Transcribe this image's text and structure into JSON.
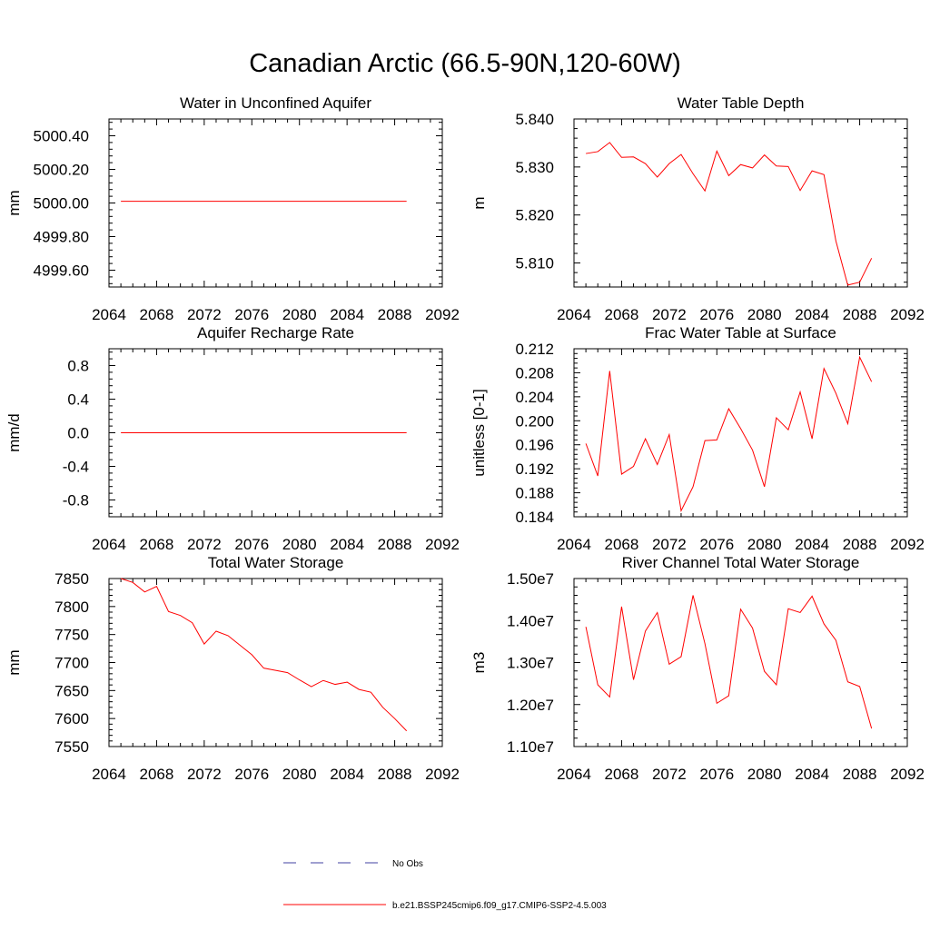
{
  "page_title": "Canadian Arctic (66.5-90N,120-60W)",
  "legend": [
    {
      "label": "No Obs",
      "color": "#4040a0",
      "dash": true
    },
    {
      "label": "b.e21.BSSP245cmip6.f09_g17.CMIP6-SSP2-4.5.003",
      "color": "#ff0000",
      "dash": false
    }
  ],
  "chart_data": [
    {
      "type": "line",
      "title": "Water in Unconfined Aquifer",
      "ylabel": "mm",
      "xlim": [
        2064,
        2092
      ],
      "ylim": [
        4999.5,
        5000.5
      ],
      "xticks": [
        2064,
        2068,
        2072,
        2076,
        2080,
        2084,
        2088,
        2092
      ],
      "xticklabels": [
        "2064",
        "2068",
        "2072",
        "2076",
        "2080",
        "2084",
        "2088",
        "2092"
      ],
      "yticks": [
        4999.6,
        4999.8,
        5000.0,
        5000.2,
        5000.4
      ],
      "yticklabels": [
        "4999.60",
        "4999.80",
        "5000.00",
        "5000.20",
        "5000.40"
      ],
      "x": [
        2065,
        2066,
        2067,
        2068,
        2069,
        2070,
        2071,
        2072,
        2073,
        2074,
        2075,
        2076,
        2077,
        2078,
        2079,
        2080,
        2081,
        2082,
        2083,
        2084,
        2085,
        2086,
        2087,
        2088,
        2089
      ],
      "series": [
        {
          "color": "#ff0000",
          "values": [
            5000.01,
            5000.01,
            5000.01,
            5000.01,
            5000.01,
            5000.01,
            5000.01,
            5000.01,
            5000.01,
            5000.01,
            5000.01,
            5000.01,
            5000.01,
            5000.01,
            5000.01,
            5000.01,
            5000.01,
            5000.01,
            5000.01,
            5000.01,
            5000.01,
            5000.01,
            5000.01,
            5000.01,
            5000.01
          ]
        }
      ]
    },
    {
      "type": "line",
      "title": "Water Table Depth",
      "ylabel": "m",
      "xlim": [
        2064,
        2092
      ],
      "ylim": [
        5.805,
        5.84
      ],
      "xticks": [
        2064,
        2068,
        2072,
        2076,
        2080,
        2084,
        2088,
        2092
      ],
      "xticklabels": [
        "2064",
        "2068",
        "2072",
        "2076",
        "2080",
        "2084",
        "2088",
        "2092"
      ],
      "yticks": [
        5.81,
        5.82,
        5.83,
        5.84
      ],
      "yticklabels": [
        "5.810",
        "5.820",
        "5.830",
        "5.840"
      ],
      "x": [
        2065,
        2066,
        2067,
        2068,
        2069,
        2070,
        2071,
        2072,
        2073,
        2074,
        2075,
        2076,
        2077,
        2078,
        2079,
        2080,
        2081,
        2082,
        2083,
        2084,
        2085,
        2086,
        2087,
        2088,
        2089
      ],
      "series": [
        {
          "color": "#ff0000",
          "values": [
            5.8328,
            5.8332,
            5.8351,
            5.832,
            5.8321,
            5.8307,
            5.8279,
            5.8307,
            5.8326,
            5.8286,
            5.825,
            5.8333,
            5.8282,
            5.8305,
            5.8298,
            5.8325,
            5.8302,
            5.8301,
            5.8251,
            5.8292,
            5.8284,
            5.8146,
            5.8054,
            5.806,
            5.811
          ]
        }
      ]
    },
    {
      "type": "line",
      "title": "Aquifer Recharge Rate",
      "ylabel": "mm/d",
      "xlim": [
        2064,
        2092
      ],
      "ylim": [
        -1.0,
        1.0
      ],
      "xticks": [
        2064,
        2068,
        2072,
        2076,
        2080,
        2084,
        2088,
        2092
      ],
      "xticklabels": [
        "2064",
        "2068",
        "2072",
        "2076",
        "2080",
        "2084",
        "2088",
        "2092"
      ],
      "yticks": [
        -0.8,
        -0.4,
        0.0,
        0.4,
        0.8
      ],
      "yticklabels": [
        "-0.8",
        "-0.4",
        "0.0",
        "0.4",
        "0.8"
      ],
      "x": [
        2065,
        2066,
        2067,
        2068,
        2069,
        2070,
        2071,
        2072,
        2073,
        2074,
        2075,
        2076,
        2077,
        2078,
        2079,
        2080,
        2081,
        2082,
        2083,
        2084,
        2085,
        2086,
        2087,
        2088,
        2089
      ],
      "series": [
        {
          "color": "#ff0000",
          "values": [
            0.0,
            0.0,
            0.0,
            0.0,
            0.0,
            0.0,
            0.0,
            0.0,
            0.0,
            0.0,
            0.0,
            0.0,
            0.0,
            0.0,
            0.0,
            0.0,
            0.0,
            0.0,
            0.0,
            0.0,
            0.0,
            0.0,
            0.0,
            0.0,
            0.0
          ]
        }
      ]
    },
    {
      "type": "line",
      "title": "Frac Water Table at Surface",
      "ylabel": "unitless [0-1]",
      "xlim": [
        2064,
        2092
      ],
      "ylim": [
        0.184,
        0.212
      ],
      "xticks": [
        2064,
        2068,
        2072,
        2076,
        2080,
        2084,
        2088,
        2092
      ],
      "xticklabels": [
        "2064",
        "2068",
        "2072",
        "2076",
        "2080",
        "2084",
        "2088",
        "2092"
      ],
      "yticks": [
        0.184,
        0.188,
        0.192,
        0.196,
        0.2,
        0.204,
        0.208,
        0.212
      ],
      "yticklabels": [
        "0.184",
        "0.188",
        "0.192",
        "0.196",
        "0.200",
        "0.204",
        "0.208",
        "0.212"
      ],
      "x": [
        2065,
        2066,
        2067,
        2068,
        2069,
        2070,
        2071,
        2072,
        2073,
        2074,
        2075,
        2076,
        2077,
        2078,
        2079,
        2080,
        2081,
        2082,
        2083,
        2084,
        2085,
        2086,
        2087,
        2088,
        2089
      ],
      "series": [
        {
          "color": "#ff0000",
          "values": [
            0.1962,
            0.1908,
            0.2083,
            0.1911,
            0.1924,
            0.197,
            0.1927,
            0.1977,
            0.185,
            0.189,
            0.1967,
            0.1968,
            0.202,
            0.1987,
            0.1951,
            0.189,
            0.2005,
            0.1985,
            0.2048,
            0.197,
            0.2087,
            0.2046,
            0.1995,
            0.2106,
            0.2065
          ]
        }
      ]
    },
    {
      "type": "line",
      "title": "Total Water Storage",
      "ylabel": "mm",
      "xlim": [
        2064,
        2092
      ],
      "ylim": [
        7550,
        7850
      ],
      "xticks": [
        2064,
        2068,
        2072,
        2076,
        2080,
        2084,
        2088,
        2092
      ],
      "xticklabels": [
        "2064",
        "2068",
        "2072",
        "2076",
        "2080",
        "2084",
        "2088",
        "2092"
      ],
      "yticks": [
        7550,
        7600,
        7650,
        7700,
        7750,
        7800,
        7850
      ],
      "yticklabels": [
        "7550",
        "7600",
        "7650",
        "7700",
        "7750",
        "7800",
        "7850"
      ],
      "x": [
        2065,
        2066,
        2067,
        2068,
        2069,
        2070,
        2071,
        2072,
        2073,
        2074,
        2075,
        2076,
        2077,
        2078,
        2079,
        2080,
        2081,
        2082,
        2083,
        2084,
        2085,
        2086,
        2087,
        2088,
        2089
      ],
      "series": [
        {
          "color": "#ff0000",
          "values": [
            7850,
            7843,
            7826,
            7836,
            7791,
            7784,
            7771,
            7733,
            7756,
            7748,
            7731,
            7714,
            7690,
            7686,
            7682,
            7669,
            7657,
            7668,
            7661,
            7665,
            7652,
            7647,
            7620,
            7600,
            7578
          ]
        }
      ]
    },
    {
      "type": "line",
      "title": "River Channel Total Water Storage",
      "ylabel": "m3",
      "xlim": [
        2064,
        2092
      ],
      "ylim": [
        11000000,
        15000000
      ],
      "xticks": [
        2064,
        2068,
        2072,
        2076,
        2080,
        2084,
        2088,
        2092
      ],
      "xticklabels": [
        "2064",
        "2068",
        "2072",
        "2076",
        "2080",
        "2084",
        "2088",
        "2092"
      ],
      "yticks": [
        11000000,
        12000000,
        13000000,
        14000000,
        15000000
      ],
      "yticklabels": [
        "1.10e7",
        "1.20e7",
        "1.30e7",
        "1.40e7",
        "1.50e7"
      ],
      "x": [
        2065,
        2066,
        2067,
        2068,
        2069,
        2070,
        2071,
        2072,
        2073,
        2074,
        2075,
        2076,
        2077,
        2078,
        2079,
        2080,
        2081,
        2082,
        2083,
        2084,
        2085,
        2086,
        2087,
        2088,
        2089
      ],
      "series": [
        {
          "color": "#ff0000",
          "values": [
            13850000,
            12470000,
            12180000,
            14330000,
            12590000,
            13750000,
            14190000,
            12960000,
            13140000,
            14600000,
            13450000,
            12030000,
            12210000,
            14270000,
            13820000,
            12790000,
            12470000,
            14280000,
            14190000,
            14580000,
            13920000,
            13530000,
            12540000,
            12430000,
            11430000
          ]
        }
      ]
    }
  ]
}
